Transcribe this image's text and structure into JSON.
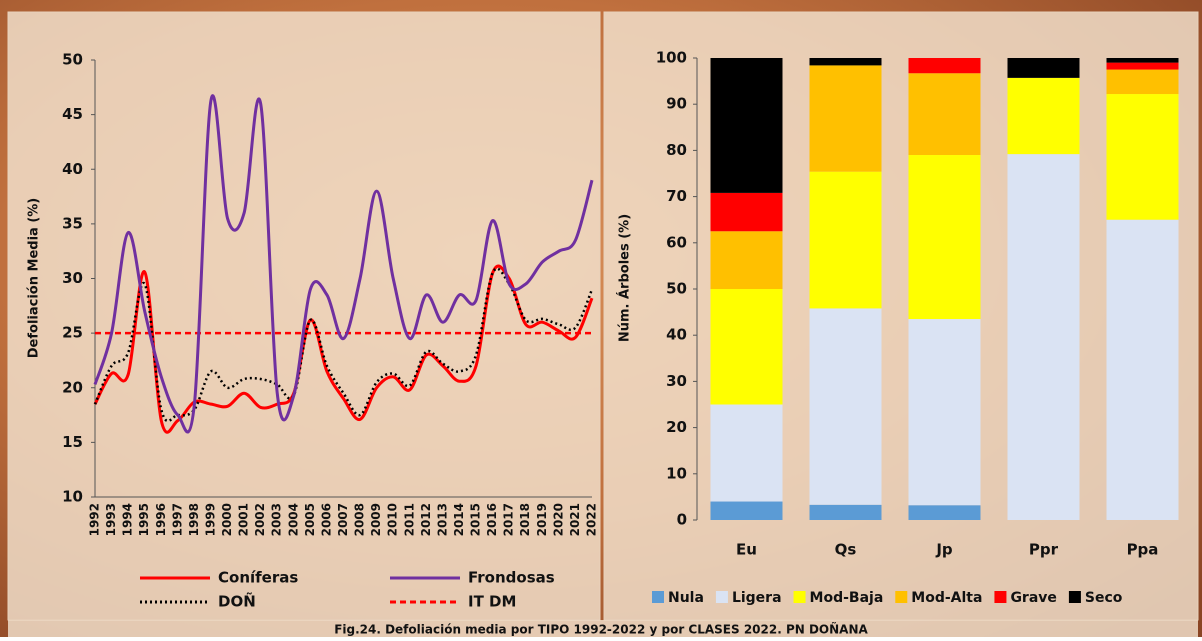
{
  "caption": "Fig.24. Defoliación media por TIPO 1992-2022 y por CLASES 2022. PN DOÑANA",
  "chart_data": [
    {
      "type": "line",
      "y_label": "Defoliación Media (%)",
      "categories": [
        "1992",
        "1993",
        "1994",
        "1995",
        "1996",
        "1997",
        "1998",
        "1999",
        "2000",
        "2001",
        "2002",
        "2003",
        "2004",
        "2005",
        "2006",
        "2007",
        "2008",
        "2009",
        "2010",
        "2011",
        "2012",
        "2013",
        "2014",
        "2015",
        "2016",
        "2017",
        "2018",
        "2019",
        "2020",
        "2021",
        "2022"
      ],
      "ylim": [
        10,
        50
      ],
      "yticks": [
        10,
        15,
        20,
        25,
        30,
        35,
        40,
        45,
        50
      ],
      "series": [
        {
          "name": "Coníferas",
          "color": "#ff0000",
          "style": "solid",
          "values": [
            18.5,
            21.3,
            21.2,
            30.6,
            17,
            17,
            18.7,
            18.5,
            18.3,
            19.5,
            18.2,
            18.5,
            19.5,
            26.2,
            21.5,
            19,
            17.1,
            20,
            21,
            19.8,
            23,
            22,
            20.6,
            22,
            30.5,
            30,
            25.8,
            26,
            25.2,
            24.6,
            28.2
          ]
        },
        {
          "name": "Frondosas",
          "color": "#7030a0",
          "style": "solid",
          "values": [
            20.3,
            25,
            34.2,
            27,
            21,
            17.5,
            18.5,
            46.3,
            35.5,
            36,
            46,
            19.5,
            19.3,
            29,
            28.5,
            24.5,
            30,
            38,
            30,
            24.5,
            28.5,
            26,
            28.5,
            28,
            35.3,
            29.5,
            29.5,
            31.5,
            32.5,
            33.5,
            39
          ]
        },
        {
          "name": "DOÑ",
          "color": "#000000",
          "style": "dotted",
          "values": [
            18.5,
            22,
            23.2,
            29.5,
            18,
            17.5,
            18,
            21.5,
            20,
            20.8,
            20.8,
            20.3,
            19.3,
            26.2,
            22,
            19.5,
            17.5,
            20.5,
            21.3,
            20.2,
            23.3,
            22.2,
            21.5,
            23,
            30.5,
            29.5,
            26.2,
            26.3,
            25.8,
            25.5,
            29
          ]
        },
        {
          "name": "IT DM",
          "color": "#ff0000",
          "style": "dashed",
          "values": [
            25,
            25,
            25,
            25,
            25,
            25,
            25,
            25,
            25,
            25,
            25,
            25,
            25,
            25,
            25,
            25,
            25,
            25,
            25,
            25,
            25,
            25,
            25,
            25,
            25,
            25,
            25,
            25,
            25,
            25,
            25
          ]
        }
      ]
    },
    {
      "type": "bar",
      "stacked": true,
      "y_label": "Núm. Árboles (%)",
      "categories": [
        "Eu",
        "Qs",
        "Jp",
        "Ppr",
        "Ppa"
      ],
      "ylim": [
        0,
        100
      ],
      "yticks": [
        0,
        10,
        20,
        30,
        40,
        50,
        60,
        70,
        80,
        90,
        100
      ],
      "series": [
        {
          "name": "Nula",
          "color": "#5b9bd5",
          "values": [
            4,
            3.3,
            3.2,
            0,
            0
          ]
        },
        {
          "name": "Ligera",
          "color": "#dae3f3",
          "values": [
            21,
            42.5,
            40.3,
            79.2,
            65
          ]
        },
        {
          "name": "Mod-Baja",
          "color": "#ffff00",
          "values": [
            25,
            29.6,
            35.5,
            16.5,
            27.2
          ]
        },
        {
          "name": "Mod-Alta",
          "color": "#ffc000",
          "values": [
            12.5,
            23,
            17.7,
            0,
            5.3
          ]
        },
        {
          "name": "Grave",
          "color": "#ff0000",
          "values": [
            8.3,
            0,
            3.3,
            0,
            1.5
          ]
        },
        {
          "name": "Seco",
          "color": "#000000",
          "values": [
            29.2,
            1.6,
            0,
            4.3,
            1
          ]
        }
      ]
    }
  ]
}
